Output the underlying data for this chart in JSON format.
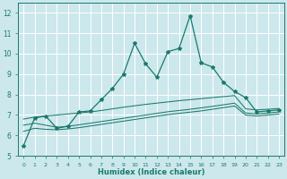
{
  "xlabel": "Humidex (Indice chaleur)",
  "bg_color": "#cce8ec",
  "grid_color": "#ffffff",
  "line_color": "#1a7a6e",
  "xlim": [
    -0.5,
    23.5
  ],
  "ylim": [
    5,
    12.5
  ],
  "yticks": [
    5,
    6,
    7,
    8,
    9,
    10,
    11,
    12
  ],
  "xticks": [
    0,
    1,
    2,
    3,
    4,
    5,
    6,
    7,
    8,
    9,
    10,
    11,
    12,
    13,
    14,
    15,
    16,
    17,
    18,
    19,
    20,
    21,
    22,
    23
  ],
  "line1_x": [
    0,
    1,
    2,
    3,
    4,
    5,
    6,
    7,
    8,
    9,
    10,
    11,
    12,
    13,
    14,
    15,
    16,
    17,
    18,
    19,
    20,
    21,
    22,
    23
  ],
  "line1_y": [
    5.5,
    6.85,
    6.95,
    6.35,
    6.45,
    7.15,
    7.2,
    7.75,
    8.3,
    9.0,
    10.5,
    9.5,
    8.85,
    10.1,
    10.25,
    11.85,
    9.55,
    9.35,
    8.6,
    8.15,
    7.85,
    7.15,
    7.2,
    7.25
  ],
  "line2_x": [
    0,
    1,
    2,
    3,
    4,
    5,
    6,
    7,
    8,
    9,
    10,
    11,
    12,
    13,
    14,
    15,
    16,
    17,
    18,
    19,
    20,
    21,
    22,
    23
  ],
  "line2_y": [
    6.8,
    6.9,
    6.95,
    7.0,
    7.05,
    7.1,
    7.15,
    7.22,
    7.3,
    7.38,
    7.45,
    7.52,
    7.58,
    7.64,
    7.7,
    7.75,
    7.8,
    7.85,
    7.9,
    7.95,
    7.3,
    7.25,
    7.28,
    7.32
  ],
  "line3_x": [
    0,
    1,
    2,
    3,
    4,
    5,
    6,
    7,
    8,
    9,
    10,
    11,
    12,
    13,
    14,
    15,
    16,
    17,
    18,
    19,
    20,
    21,
    22,
    23
  ],
  "line3_y": [
    6.5,
    6.6,
    6.5,
    6.4,
    6.45,
    6.52,
    6.6,
    6.68,
    6.76,
    6.84,
    6.92,
    7.0,
    7.08,
    7.16,
    7.22,
    7.28,
    7.35,
    7.42,
    7.5,
    7.58,
    7.1,
    7.05,
    7.1,
    7.15
  ],
  "line4_x": [
    0,
    1,
    2,
    3,
    4,
    5,
    6,
    7,
    8,
    9,
    10,
    11,
    12,
    13,
    14,
    15,
    16,
    17,
    18,
    19,
    20,
    21,
    22,
    23
  ],
  "line4_y": [
    6.2,
    6.35,
    6.3,
    6.28,
    6.32,
    6.38,
    6.46,
    6.54,
    6.62,
    6.7,
    6.78,
    6.86,
    6.94,
    7.02,
    7.08,
    7.14,
    7.2,
    7.28,
    7.36,
    7.44,
    7.0,
    6.95,
    7.0,
    7.05
  ]
}
